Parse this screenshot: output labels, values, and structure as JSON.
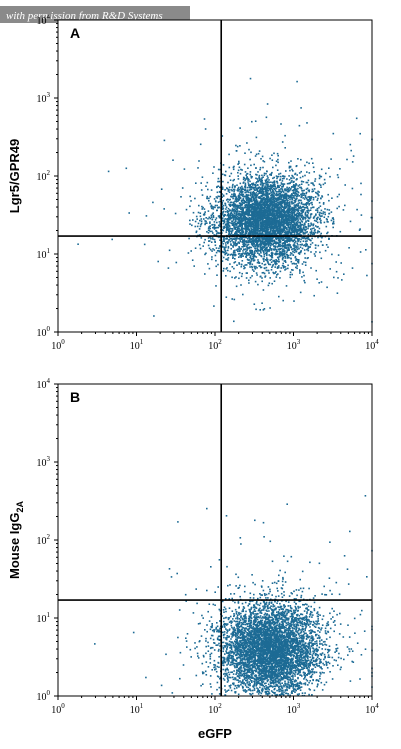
{
  "credit": "with permission from R&D Systems",
  "colors": {
    "dot": "#1d6b95",
    "axis": "#000000"
  },
  "chart_data": [
    {
      "type": "scatter",
      "panel_label": "A",
      "xlabel": "",
      "ylabel": "Lgr5/GPR49",
      "xscale": "log",
      "yscale": "log",
      "xlim": [
        1,
        10000
      ],
      "ylim": [
        1,
        10000
      ],
      "x_ticks": [
        "10",
        "10",
        "10",
        "10",
        "10"
      ],
      "x_tick_exponents": [
        "0",
        "1",
        "2",
        "3",
        "4"
      ],
      "y_ticks": [
        "10",
        "10",
        "10",
        "10",
        "10"
      ],
      "y_tick_exponents": [
        "0",
        "1",
        "2",
        "3",
        "4"
      ],
      "quadrant_gate": {
        "x": 120,
        "y": 17
      },
      "population": {
        "center_x": 450,
        "center_y": 28,
        "spread_x_decades": 0.32,
        "spread_y_decades": 0.28,
        "events": 5200
      }
    },
    {
      "type": "scatter",
      "panel_label": "B",
      "xlabel": "eGFP",
      "ylabel": "Mouse IgG",
      "ylabel_subscript": "2A",
      "xscale": "log",
      "yscale": "log",
      "xlim": [
        1,
        10000
      ],
      "ylim": [
        1,
        10000
      ],
      "x_ticks": [
        "10",
        "10",
        "10",
        "10",
        "10"
      ],
      "x_tick_exponents": [
        "0",
        "1",
        "2",
        "3",
        "4"
      ],
      "y_ticks": [
        "10",
        "10",
        "10",
        "10",
        "10"
      ],
      "y_tick_exponents": [
        "0",
        "1",
        "2",
        "3",
        "4"
      ],
      "quadrant_gate": {
        "x": 120,
        "y": 17
      },
      "population": {
        "center_x": 500,
        "center_y": 4,
        "spread_x_decades": 0.32,
        "spread_y_decades": 0.3,
        "events": 5200
      }
    }
  ]
}
